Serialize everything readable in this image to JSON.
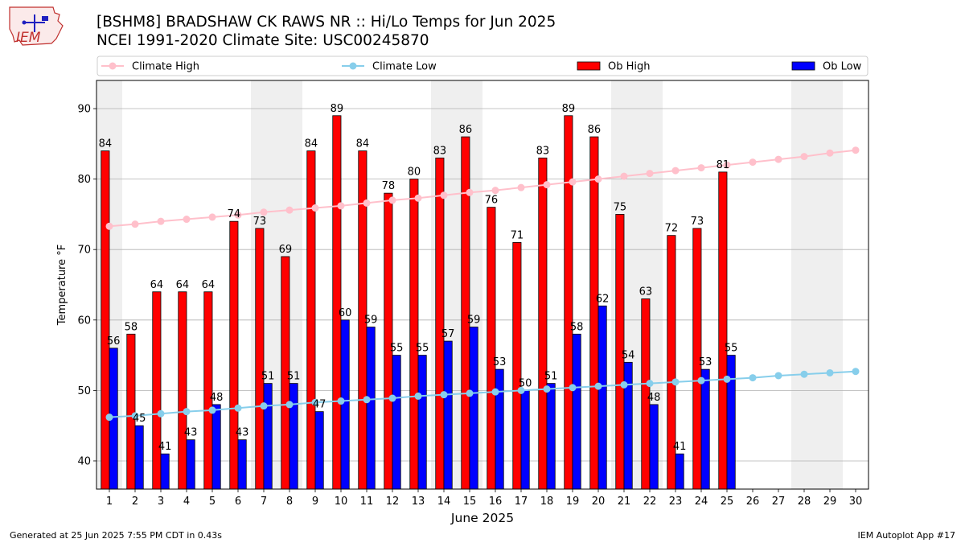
{
  "header": {
    "title_line1": "[BSHM8] BRADSHAW CK RAWS NR :: Hi/Lo Temps for Jun 2025",
    "title_line2": "NCEI 1991-2020 Climate Site: USC00245870"
  },
  "logo": {
    "text": "IEM"
  },
  "footer": {
    "left": "Generated at 25 Jun 2025 7:55 PM CDT in 0.43s",
    "right": "IEM Autoplot App #17"
  },
  "colors": {
    "ob_high": "#ff0000",
    "ob_low": "#0000ff",
    "climate_high": "#ffc0cb",
    "climate_low": "#87ceeb",
    "weekend_band": "#efefef",
    "grid": "#b0b0b0"
  },
  "chart_data": {
    "type": "bar",
    "xlabel": "June 2025",
    "ylabel": "Temperature °F",
    "ylim": [
      36,
      94
    ],
    "yticks": [
      40,
      50,
      60,
      70,
      80,
      90
    ],
    "grid": "horizontal",
    "legend_position": "top",
    "categories": [
      "1",
      "2",
      "3",
      "4",
      "5",
      "6",
      "7",
      "8",
      "9",
      "10",
      "11",
      "12",
      "13",
      "14",
      "15",
      "16",
      "17",
      "18",
      "19",
      "20",
      "21",
      "22",
      "23",
      "24",
      "25",
      "26",
      "27",
      "28",
      "29",
      "30"
    ],
    "shaded_days": [
      "1",
      "7",
      "8",
      "14",
      "15",
      "21",
      "22",
      "28",
      "29"
    ],
    "series": [
      {
        "name": "Ob High",
        "kind": "bar",
        "values": [
          84,
          58,
          64,
          64,
          64,
          74,
          73,
          69,
          84,
          89,
          84,
          78,
          80,
          83,
          86,
          76,
          71,
          83,
          89,
          86,
          75,
          63,
          72,
          73,
          81,
          null,
          null,
          null,
          null,
          null
        ]
      },
      {
        "name": "Ob Low",
        "kind": "bar",
        "values": [
          56,
          45,
          41,
          43,
          48,
          43,
          51,
          51,
          47,
          60,
          59,
          55,
          55,
          57,
          59,
          53,
          50,
          51,
          58,
          62,
          54,
          48,
          41,
          53,
          55,
          null,
          null,
          null,
          null,
          null
        ]
      },
      {
        "name": "Climate High",
        "kind": "line",
        "values": [
          73.3,
          73.6,
          74.0,
          74.3,
          74.6,
          74.9,
          75.3,
          75.6,
          75.9,
          76.2,
          76.6,
          77.0,
          77.3,
          77.7,
          78.1,
          78.4,
          78.8,
          79.2,
          79.6,
          80.0,
          80.4,
          80.8,
          81.2,
          81.6,
          82.0,
          82.4,
          82.8,
          83.2,
          83.7,
          84.1
        ]
      },
      {
        "name": "Climate Low",
        "kind": "line",
        "values": [
          46.2,
          46.4,
          46.7,
          47.0,
          47.2,
          47.5,
          47.8,
          48.0,
          48.3,
          48.5,
          48.7,
          48.9,
          49.2,
          49.4,
          49.6,
          49.8,
          50.0,
          50.2,
          50.4,
          50.6,
          50.8,
          51.0,
          51.2,
          51.4,
          51.6,
          51.8,
          52.1,
          52.3,
          52.5,
          52.7
        ]
      }
    ]
  }
}
